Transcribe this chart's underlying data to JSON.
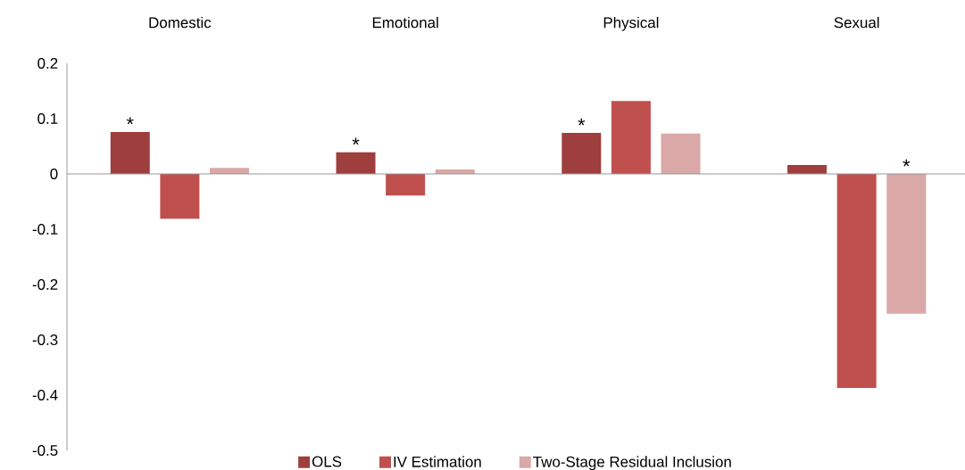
{
  "chart_data": {
    "type": "bar",
    "categories": [
      "Domestic",
      "Emotional",
      "Physical",
      "Sexual"
    ],
    "series": [
      {
        "name": "OLS",
        "color": "#9e3e3d",
        "values": [
          0.076,
          0.039,
          0.074,
          0.016
        ]
      },
      {
        "name": "IV Estimation",
        "color": "#c0504d",
        "values": [
          -0.081,
          -0.039,
          0.132,
          -0.387
        ]
      },
      {
        "name": "Two-Stage Residual Inclusion",
        "color": "#d9a8a7",
        "values": [
          0.011,
          0.008,
          0.073,
          -0.253
        ]
      }
    ],
    "ylim": [
      -0.5,
      0.2
    ],
    "yticks": [
      -0.5,
      -0.4,
      -0.3,
      -0.2,
      -0.1,
      0,
      0.1,
      0.2
    ],
    "legend": "bottom",
    "annotations": [
      "*",
      "*",
      "*",
      "*"
    ]
  }
}
